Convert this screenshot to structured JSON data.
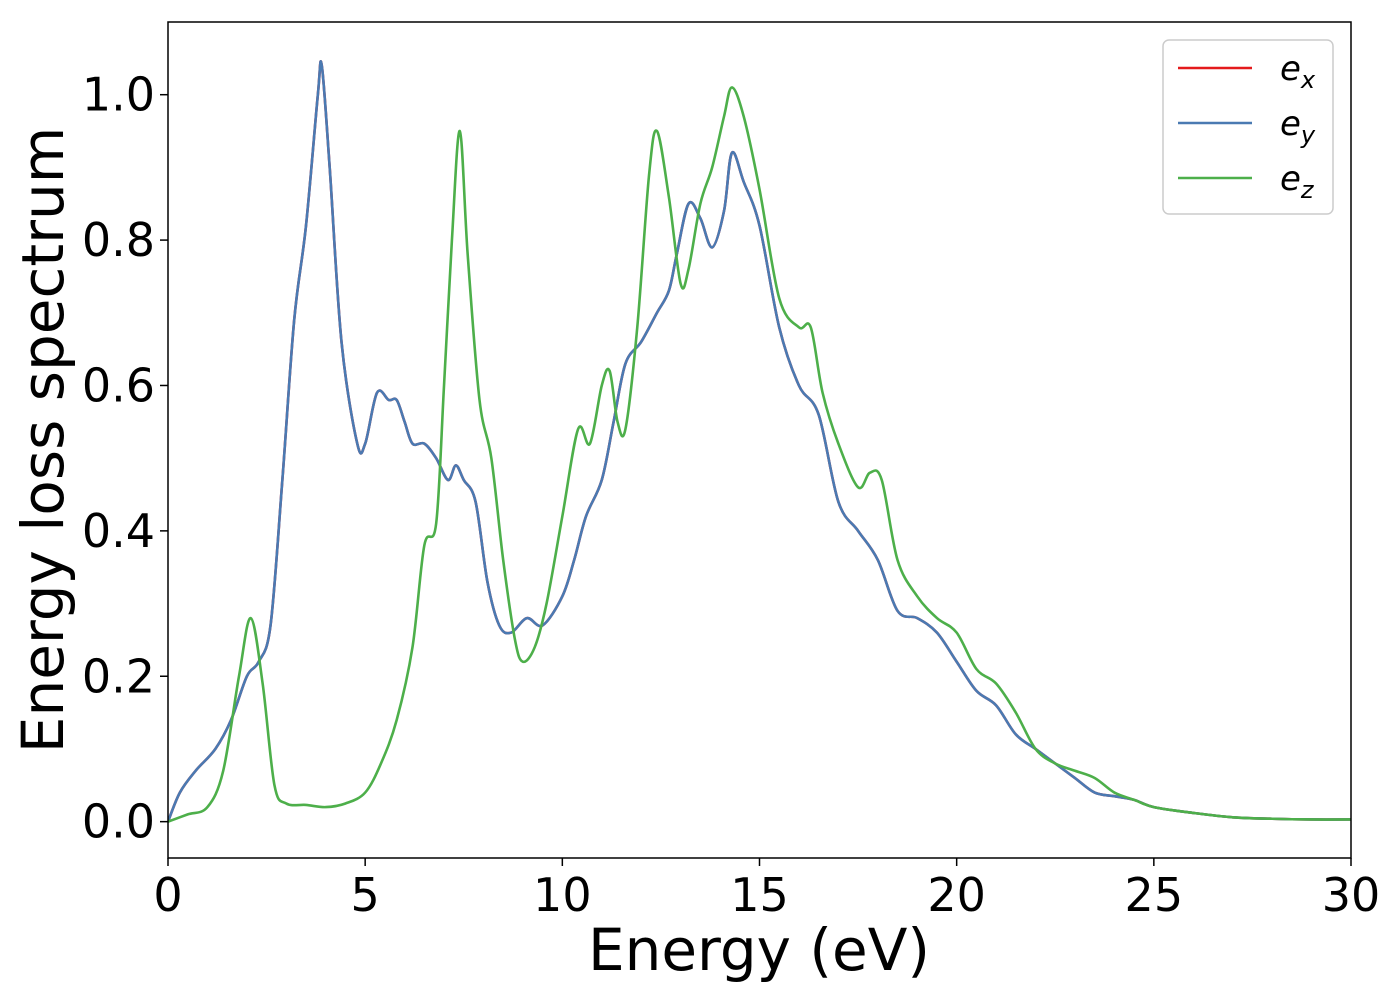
{
  "chart_data": {
    "type": "line",
    "xlabel": "Energy (eV)",
    "ylabel": "Energy loss spectrum",
    "xlim": [
      0,
      30
    ],
    "ylim": [
      -0.05,
      1.1
    ],
    "xticks": [
      0,
      5,
      10,
      15,
      20,
      25,
      30
    ],
    "xtick_labels": [
      "0",
      "5",
      "10",
      "15",
      "20",
      "25",
      "30"
    ],
    "yticks": [
      0.0,
      0.2,
      0.4,
      0.6,
      0.8,
      1.0
    ],
    "ytick_labels": [
      "0.0",
      "0.2",
      "0.4",
      "0.6",
      "0.8",
      "1.0"
    ],
    "grid": false,
    "legend_position": "top-right",
    "series": [
      {
        "name": "e",
        "subscript": "x",
        "color": "#e41a1c",
        "x": [
          0,
          0.3,
          0.7,
          1.2,
          1.6,
          2.0,
          2.3,
          2.6,
          2.9,
          3.2,
          3.5,
          3.8,
          3.9,
          4.1,
          4.4,
          4.8,
          5.0,
          5.3,
          5.6,
          5.8,
          6.0,
          6.2,
          6.5,
          6.8,
          7.1,
          7.3,
          7.5,
          7.8,
          8.1,
          8.4,
          8.7,
          9.1,
          9.5,
          10.0,
          10.3,
          10.6,
          11.0,
          11.3,
          11.6,
          12.0,
          12.4,
          12.7,
          12.9,
          13.2,
          13.5,
          13.8,
          14.1,
          14.3,
          14.6,
          15.0,
          15.5,
          16.0,
          16.5,
          17.0,
          17.5,
          18.0,
          18.5,
          19.0,
          19.5,
          20.0,
          20.5,
          21.0,
          21.5,
          22.0,
          22.5,
          23.0,
          23.5,
          24.0,
          24.5,
          25.0,
          26.0,
          27.0,
          28.0,
          29.0,
          30.0
        ],
        "y": [
          0.0,
          0.04,
          0.07,
          0.1,
          0.14,
          0.2,
          0.22,
          0.27,
          0.47,
          0.69,
          0.82,
          1.0,
          1.04,
          0.9,
          0.66,
          0.52,
          0.52,
          0.59,
          0.58,
          0.58,
          0.55,
          0.52,
          0.52,
          0.5,
          0.47,
          0.49,
          0.47,
          0.44,
          0.33,
          0.27,
          0.26,
          0.28,
          0.27,
          0.31,
          0.36,
          0.42,
          0.47,
          0.55,
          0.63,
          0.66,
          0.7,
          0.73,
          0.78,
          0.85,
          0.83,
          0.79,
          0.84,
          0.92,
          0.88,
          0.82,
          0.68,
          0.6,
          0.56,
          0.44,
          0.4,
          0.36,
          0.29,
          0.28,
          0.26,
          0.22,
          0.18,
          0.16,
          0.12,
          0.1,
          0.08,
          0.06,
          0.04,
          0.035,
          0.03,
          0.02,
          0.012,
          0.006,
          0.004,
          0.003,
          0.003
        ]
      },
      {
        "name": "e",
        "subscript": "y",
        "color": "#4a7ab2",
        "x": [
          0,
          0.3,
          0.7,
          1.2,
          1.6,
          2.0,
          2.3,
          2.6,
          2.9,
          3.2,
          3.5,
          3.8,
          3.9,
          4.1,
          4.4,
          4.8,
          5.0,
          5.3,
          5.6,
          5.8,
          6.0,
          6.2,
          6.5,
          6.8,
          7.1,
          7.3,
          7.5,
          7.8,
          8.1,
          8.4,
          8.7,
          9.1,
          9.5,
          10.0,
          10.3,
          10.6,
          11.0,
          11.3,
          11.6,
          12.0,
          12.4,
          12.7,
          12.9,
          13.2,
          13.5,
          13.8,
          14.1,
          14.3,
          14.6,
          15.0,
          15.5,
          16.0,
          16.5,
          17.0,
          17.5,
          18.0,
          18.5,
          19.0,
          19.5,
          20.0,
          20.5,
          21.0,
          21.5,
          22.0,
          22.5,
          23.0,
          23.5,
          24.0,
          24.5,
          25.0,
          26.0,
          27.0,
          28.0,
          29.0,
          30.0
        ],
        "y": [
          0.0,
          0.04,
          0.07,
          0.1,
          0.14,
          0.2,
          0.22,
          0.27,
          0.47,
          0.69,
          0.82,
          1.0,
          1.04,
          0.9,
          0.66,
          0.52,
          0.52,
          0.59,
          0.58,
          0.58,
          0.55,
          0.52,
          0.52,
          0.5,
          0.47,
          0.49,
          0.47,
          0.44,
          0.33,
          0.27,
          0.26,
          0.28,
          0.27,
          0.31,
          0.36,
          0.42,
          0.47,
          0.55,
          0.63,
          0.66,
          0.7,
          0.73,
          0.78,
          0.85,
          0.83,
          0.79,
          0.84,
          0.92,
          0.88,
          0.82,
          0.68,
          0.6,
          0.56,
          0.44,
          0.4,
          0.36,
          0.29,
          0.28,
          0.26,
          0.22,
          0.18,
          0.16,
          0.12,
          0.1,
          0.08,
          0.06,
          0.04,
          0.035,
          0.03,
          0.02,
          0.012,
          0.006,
          0.004,
          0.003,
          0.003
        ]
      },
      {
        "name": "e",
        "subscript": "z",
        "color": "#4daf4a",
        "x": [
          0,
          0.5,
          1.0,
          1.4,
          1.8,
          2.1,
          2.4,
          2.7,
          3.0,
          3.5,
          4.0,
          4.5,
          5.0,
          5.4,
          5.8,
          6.2,
          6.5,
          6.8,
          7.0,
          7.2,
          7.4,
          7.6,
          7.9,
          8.2,
          8.5,
          8.8,
          9.0,
          9.3,
          9.6,
          10.0,
          10.4,
          10.7,
          11.0,
          11.2,
          11.4,
          11.6,
          11.9,
          12.2,
          12.4,
          12.7,
          13.0,
          13.2,
          13.5,
          13.8,
          14.1,
          14.3,
          14.6,
          15.0,
          15.5,
          16.0,
          16.3,
          16.6,
          17.0,
          17.5,
          17.8,
          18.1,
          18.5,
          19.0,
          19.5,
          20.0,
          20.5,
          21.0,
          21.5,
          22.0,
          22.5,
          23.0,
          23.5,
          24.0,
          24.5,
          25.0,
          26.0,
          27.0,
          28.0,
          29.0,
          30.0
        ],
        "y": [
          0.0,
          0.01,
          0.02,
          0.07,
          0.2,
          0.28,
          0.19,
          0.05,
          0.025,
          0.023,
          0.02,
          0.025,
          0.04,
          0.08,
          0.14,
          0.24,
          0.38,
          0.41,
          0.6,
          0.8,
          0.95,
          0.78,
          0.58,
          0.5,
          0.36,
          0.25,
          0.22,
          0.24,
          0.3,
          0.42,
          0.54,
          0.52,
          0.6,
          0.62,
          0.55,
          0.54,
          0.68,
          0.89,
          0.95,
          0.86,
          0.74,
          0.76,
          0.85,
          0.9,
          0.97,
          1.01,
          0.97,
          0.87,
          0.72,
          0.68,
          0.68,
          0.59,
          0.52,
          0.46,
          0.48,
          0.47,
          0.36,
          0.31,
          0.28,
          0.26,
          0.21,
          0.19,
          0.15,
          0.1,
          0.08,
          0.07,
          0.06,
          0.04,
          0.03,
          0.02,
          0.012,
          0.006,
          0.004,
          0.003,
          0.003
        ]
      }
    ]
  }
}
